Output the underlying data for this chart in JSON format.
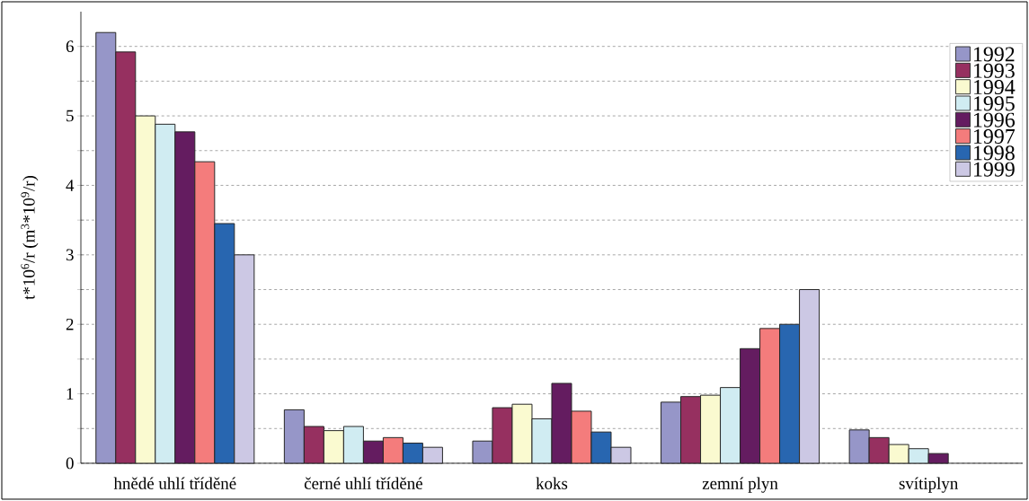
{
  "chart_data": {
    "type": "bar",
    "ylabel": "t*10$^{6}$/r (m$^{3}$*10$^{9}$/r)",
    "categories": [
      "hnědé uhlí tříděné",
      "černé uhlí tříděné",
      "koks",
      "zemní plyn",
      "svítiplyn"
    ],
    "series": [
      {
        "name": "1992",
        "color": "#9696c8",
        "values": [
          6.2,
          0.77,
          0.32,
          0.88,
          0.48
        ]
      },
      {
        "name": "1993",
        "color": "#963060",
        "values": [
          5.92,
          0.53,
          0.8,
          0.96,
          0.37
        ]
      },
      {
        "name": "1994",
        "color": "#fafad0",
        "values": [
          5.0,
          0.47,
          0.85,
          0.98,
          0.27
        ]
      },
      {
        "name": "1995",
        "color": "#d0ecf2",
        "values": [
          4.88,
          0.53,
          0.64,
          1.09,
          0.21
        ]
      },
      {
        "name": "1996",
        "color": "#641c60",
        "values": [
          4.77,
          0.32,
          1.15,
          1.65,
          0.14
        ]
      },
      {
        "name": "1997",
        "color": "#f47c7c",
        "values": [
          4.34,
          0.37,
          0.75,
          1.94,
          null
        ]
      },
      {
        "name": "1998",
        "color": "#2866b0",
        "values": [
          3.45,
          0.29,
          0.45,
          2.0,
          null
        ]
      },
      {
        "name": "1999",
        "color": "#ccc8e4",
        "values": [
          3.0,
          0.23,
          0.23,
          2.5,
          null
        ]
      }
    ],
    "ylim": [
      0,
      6.5
    ],
    "yticks": [
      0,
      {
        "value": 0.5,
        "label": null
      },
      1,
      {
        "value": 1.5,
        "label": null
      },
      2,
      {
        "value": 2.5,
        "label": null
      },
      3,
      {
        "value": 3.5,
        "label": null
      },
      4,
      {
        "value": 4.5,
        "label": null
      },
      5,
      {
        "value": 5.5,
        "label": null
      },
      6
    ],
    "grid": "y",
    "legend": "top right"
  }
}
